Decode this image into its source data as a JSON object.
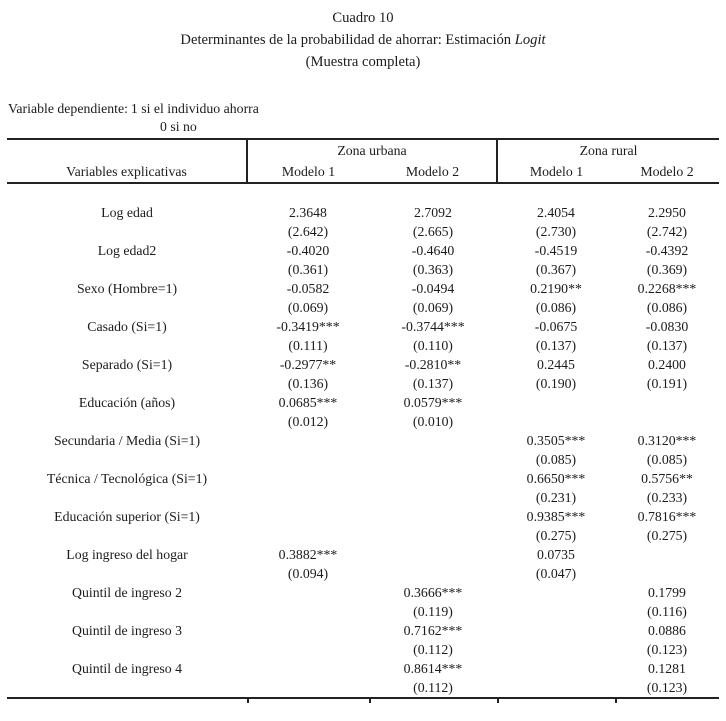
{
  "title": {
    "line1": "Cuadro 10",
    "line2_normal": "Determinantes de la probabilidad de ahorrar: Estimación ",
    "line2_italic": "Logit",
    "line3": "(Muestra completa)"
  },
  "dependent_variable": {
    "label": "Variable dependiente:",
    "value_line1": "1 si el individuo ahorra",
    "value_line2": "0 si no"
  },
  "table": {
    "row_header": "Variables explicativas",
    "zone_headers": [
      "Zona urbana",
      "Zona rural"
    ],
    "model_headers": [
      "Modelo 1",
      "Modelo 2",
      "Modelo 1",
      "Modelo 2"
    ],
    "rows": [
      {
        "label": "Log edad",
        "cells": [
          {
            "coef": "2.3648",
            "se": "(2.642)"
          },
          {
            "coef": "2.7092",
            "se": "(2.665)"
          },
          {
            "coef": "2.4054",
            "se": "(2.730)"
          },
          {
            "coef": "2.2950",
            "se": "(2.742)"
          }
        ]
      },
      {
        "label": "Log edad2",
        "cells": [
          {
            "coef": "-0.4020",
            "se": "(0.361)"
          },
          {
            "coef": "-0.4640",
            "se": "(0.363)"
          },
          {
            "coef": "-0.4519",
            "se": "(0.367)"
          },
          {
            "coef": "-0.4392",
            "se": "(0.369)"
          }
        ]
      },
      {
        "label": "Sexo (Hombre=1)",
        "cells": [
          {
            "coef": "-0.0582",
            "se": "(0.069)"
          },
          {
            "coef": "-0.0494",
            "se": "(0.069)"
          },
          {
            "coef": "0.2190**",
            "se": "(0.086)"
          },
          {
            "coef": "0.2268***",
            "se": "(0.086)"
          }
        ]
      },
      {
        "label": "Casado (Si=1)",
        "cells": [
          {
            "coef": "-0.3419***",
            "se": "(0.111)"
          },
          {
            "coef": "-0.3744***",
            "se": "(0.110)"
          },
          {
            "coef": "-0.0675",
            "se": "(0.137)"
          },
          {
            "coef": "-0.0830",
            "se": "(0.137)"
          }
        ]
      },
      {
        "label": "Separado (Si=1)",
        "cells": [
          {
            "coef": "-0.2977**",
            "se": "(0.136)"
          },
          {
            "coef": "-0.2810**",
            "se": "(0.137)"
          },
          {
            "coef": "0.2445",
            "se": "(0.190)"
          },
          {
            "coef": "0.2400",
            "se": "(0.191)"
          }
        ]
      },
      {
        "label": "Educación (años)",
        "cells": [
          {
            "coef": "0.0685***",
            "se": "(0.012)"
          },
          {
            "coef": "0.0579***",
            "se": "(0.010)"
          },
          {
            "coef": "",
            "se": ""
          },
          {
            "coef": "",
            "se": ""
          }
        ]
      },
      {
        "label": "Secundaria / Media (Si=1)",
        "cells": [
          {
            "coef": "",
            "se": ""
          },
          {
            "coef": "",
            "se": ""
          },
          {
            "coef": "0.3505***",
            "se": "(0.085)"
          },
          {
            "coef": "0.3120***",
            "se": "(0.085)"
          }
        ]
      },
      {
        "label": "Técnica / Tecnológica (Si=1)",
        "cells": [
          {
            "coef": "",
            "se": ""
          },
          {
            "coef": "",
            "se": ""
          },
          {
            "coef": "0.6650***",
            "se": "(0.231)"
          },
          {
            "coef": "0.5756**",
            "se": "(0.233)"
          }
        ]
      },
      {
        "label": "Educación superior (Si=1)",
        "cells": [
          {
            "coef": "",
            "se": ""
          },
          {
            "coef": "",
            "se": ""
          },
          {
            "coef": "0.9385***",
            "se": "(0.275)"
          },
          {
            "coef": "0.7816***",
            "se": "(0.275)"
          }
        ]
      },
      {
        "label": "Log ingreso del hogar",
        "cells": [
          {
            "coef": "0.3882***",
            "se": "(0.094)"
          },
          {
            "coef": "",
            "se": ""
          },
          {
            "coef": "0.0735",
            "se": "(0.047)"
          },
          {
            "coef": "",
            "se": ""
          }
        ]
      },
      {
        "label": "Quintil de ingreso 2",
        "cells": [
          {
            "coef": "",
            "se": ""
          },
          {
            "coef": "0.3666***",
            "se": "(0.119)"
          },
          {
            "coef": "",
            "se": ""
          },
          {
            "coef": "0.1799",
            "se": "(0.116)"
          }
        ]
      },
      {
        "label": "Quintil de ingreso 3",
        "cells": [
          {
            "coef": "",
            "se": ""
          },
          {
            "coef": "0.7162***",
            "se": "(0.112)"
          },
          {
            "coef": "",
            "se": ""
          },
          {
            "coef": "0.0886",
            "se": "(0.123)"
          }
        ]
      },
      {
        "label": "Quintil de ingreso 4",
        "cells": [
          {
            "coef": "",
            "se": ""
          },
          {
            "coef": "0.8614***",
            "se": "(0.112)"
          },
          {
            "coef": "",
            "se": ""
          },
          {
            "coef": "0.1281",
            "se": "(0.123)"
          }
        ]
      }
    ]
  },
  "colors": {
    "text": "#1b1b1b",
    "background": "#ffffff",
    "rule": "#222222"
  }
}
